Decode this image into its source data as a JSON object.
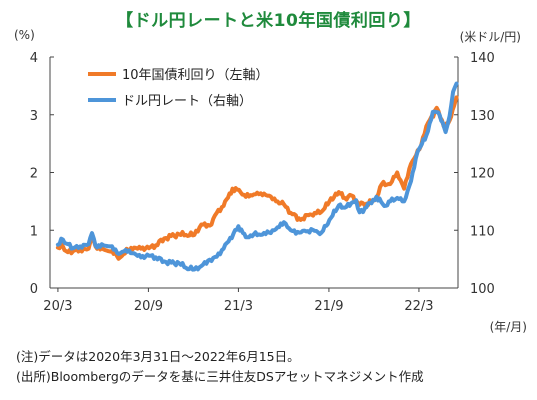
{
  "header": {
    "title": "【ドル円レートと米10年国債利回り】",
    "left_unit": "(%)",
    "right_unit": "(米ドル/円)",
    "x_unit": "(年/月)"
  },
  "footnotes": {
    "note": "(注)データは2020年3月31日～2022年6月15日。",
    "source": "(出所)Bloombergのデータを基に三井住友DSアセットマネジメント作成"
  },
  "colors": {
    "yield": "#f07a28",
    "fx": "#4e95d9",
    "axis": "#444444"
  },
  "chart_data": {
    "type": "line",
    "x_ticks": [
      "20/3",
      "20/9",
      "21/3",
      "21/9",
      "22/3"
    ],
    "y_left": {
      "ticks": [
        "0",
        "1",
        "2",
        "3",
        "4"
      ],
      "ylim": [
        0,
        4
      ]
    },
    "y_right": {
      "ticks": [
        "100",
        "110",
        "120",
        "130",
        "140"
      ],
      "ylim": [
        100,
        140
      ]
    },
    "legend_position": "top-left",
    "series": [
      {
        "name": "10年国債利回り（左軸）",
        "axis": "left",
        "points": [
          [
            "2020-03-31",
            0.7
          ],
          [
            "2020-04-10",
            0.72
          ],
          [
            "2020-04-20",
            0.62
          ],
          [
            "2020-05-01",
            0.64
          ],
          [
            "2020-05-15",
            0.66
          ],
          [
            "2020-06-01",
            0.68
          ],
          [
            "2020-06-08",
            0.88
          ],
          [
            "2020-06-15",
            0.72
          ],
          [
            "2020-07-01",
            0.67
          ],
          [
            "2020-07-15",
            0.63
          ],
          [
            "2020-08-04",
            0.53
          ],
          [
            "2020-08-20",
            0.66
          ],
          [
            "2020-09-01",
            0.7
          ],
          [
            "2020-09-15",
            0.68
          ],
          [
            "2020-10-01",
            0.69
          ],
          [
            "2020-10-15",
            0.74
          ],
          [
            "2020-11-01",
            0.86
          ],
          [
            "2020-11-15",
            0.9
          ],
          [
            "2020-12-01",
            0.93
          ],
          [
            "2020-12-15",
            0.92
          ],
          [
            "2021-01-01",
            0.92
          ],
          [
            "2021-01-15",
            1.1
          ],
          [
            "2021-02-01",
            1.08
          ],
          [
            "2021-02-15",
            1.3
          ],
          [
            "2021-03-01",
            1.42
          ],
          [
            "2021-03-19",
            1.72
          ],
          [
            "2021-04-01",
            1.7
          ],
          [
            "2021-04-15",
            1.58
          ],
          [
            "2021-05-01",
            1.62
          ],
          [
            "2021-05-15",
            1.64
          ],
          [
            "2021-06-01",
            1.6
          ],
          [
            "2021-06-15",
            1.5
          ],
          [
            "2021-07-01",
            1.45
          ],
          [
            "2021-07-15",
            1.3
          ],
          [
            "2021-08-04",
            1.18
          ],
          [
            "2021-08-20",
            1.26
          ],
          [
            "2021-09-01",
            1.3
          ],
          [
            "2021-09-15",
            1.32
          ],
          [
            "2021-10-01",
            1.5
          ],
          [
            "2021-10-20",
            1.66
          ],
          [
            "2021-11-01",
            1.56
          ],
          [
            "2021-11-15",
            1.6
          ],
          [
            "2021-12-01",
            1.44
          ],
          [
            "2021-12-15",
            1.46
          ],
          [
            "2022-01-01",
            1.52
          ],
          [
            "2022-01-15",
            1.8
          ],
          [
            "2022-02-01",
            1.8
          ],
          [
            "2022-02-15",
            2.0
          ],
          [
            "2022-03-01",
            1.72
          ],
          [
            "2022-03-15",
            2.15
          ],
          [
            "2022-04-01",
            2.4
          ],
          [
            "2022-04-15",
            2.8
          ],
          [
            "2022-05-06",
            3.12
          ],
          [
            "2022-05-20",
            2.8
          ],
          [
            "2022-06-01",
            2.9
          ],
          [
            "2022-06-10",
            3.15
          ],
          [
            "2022-06-15",
            3.3
          ]
        ]
      },
      {
        "name": "ドル円レート（右軸）",
        "axis": "right",
        "points": [
          [
            "2020-03-31",
            107.5
          ],
          [
            "2020-04-10",
            108.4
          ],
          [
            "2020-04-20",
            107.6
          ],
          [
            "2020-05-01",
            106.9
          ],
          [
            "2020-05-15",
            107.2
          ],
          [
            "2020-06-01",
            107.6
          ],
          [
            "2020-06-08",
            109.5
          ],
          [
            "2020-06-15",
            107.3
          ],
          [
            "2020-07-01",
            107.4
          ],
          [
            "2020-07-15",
            107.2
          ],
          [
            "2020-08-01",
            105.9
          ],
          [
            "2020-08-15",
            106.6
          ],
          [
            "2020-09-01",
            106.0
          ],
          [
            "2020-09-15",
            105.3
          ],
          [
            "2020-10-01",
            105.6
          ],
          [
            "2020-10-15",
            105.3
          ],
          [
            "2020-11-01",
            104.6
          ],
          [
            "2020-11-15",
            104.4
          ],
          [
            "2020-12-01",
            104.3
          ],
          [
            "2020-12-15",
            103.5
          ],
          [
            "2021-01-01",
            103.2
          ],
          [
            "2021-01-15",
            103.8
          ],
          [
            "2021-02-01",
            104.9
          ],
          [
            "2021-02-15",
            105.4
          ],
          [
            "2021-03-01",
            106.8
          ],
          [
            "2021-03-31",
            110.7
          ],
          [
            "2021-04-15",
            108.8
          ],
          [
            "2021-05-01",
            109.3
          ],
          [
            "2021-05-15",
            109.2
          ],
          [
            "2021-06-01",
            109.6
          ],
          [
            "2021-06-15",
            110.2
          ],
          [
            "2021-07-01",
            111.4
          ],
          [
            "2021-07-15",
            110.0
          ],
          [
            "2021-08-01",
            109.6
          ],
          [
            "2021-08-15",
            109.8
          ],
          [
            "2021-09-01",
            109.9
          ],
          [
            "2021-09-15",
            109.6
          ],
          [
            "2021-10-01",
            111.8
          ],
          [
            "2021-10-20",
            114.3
          ],
          [
            "2021-11-01",
            113.9
          ],
          [
            "2021-11-24",
            115.2
          ],
          [
            "2021-12-01",
            113.1
          ],
          [
            "2021-12-15",
            114.0
          ],
          [
            "2022-01-04",
            115.8
          ],
          [
            "2022-01-20",
            114.2
          ],
          [
            "2022-02-01",
            115.0
          ],
          [
            "2022-02-15",
            115.6
          ],
          [
            "2022-03-01",
            115.0
          ],
          [
            "2022-03-15",
            118.5
          ],
          [
            "2022-03-28",
            123.5
          ],
          [
            "2022-04-15",
            126.4
          ],
          [
            "2022-04-28",
            130.5
          ],
          [
            "2022-05-09",
            130.4
          ],
          [
            "2022-05-24",
            127.0
          ],
          [
            "2022-06-01",
            129.8
          ],
          [
            "2022-06-08",
            134.0
          ],
          [
            "2022-06-15",
            135.4
          ]
        ]
      }
    ]
  }
}
